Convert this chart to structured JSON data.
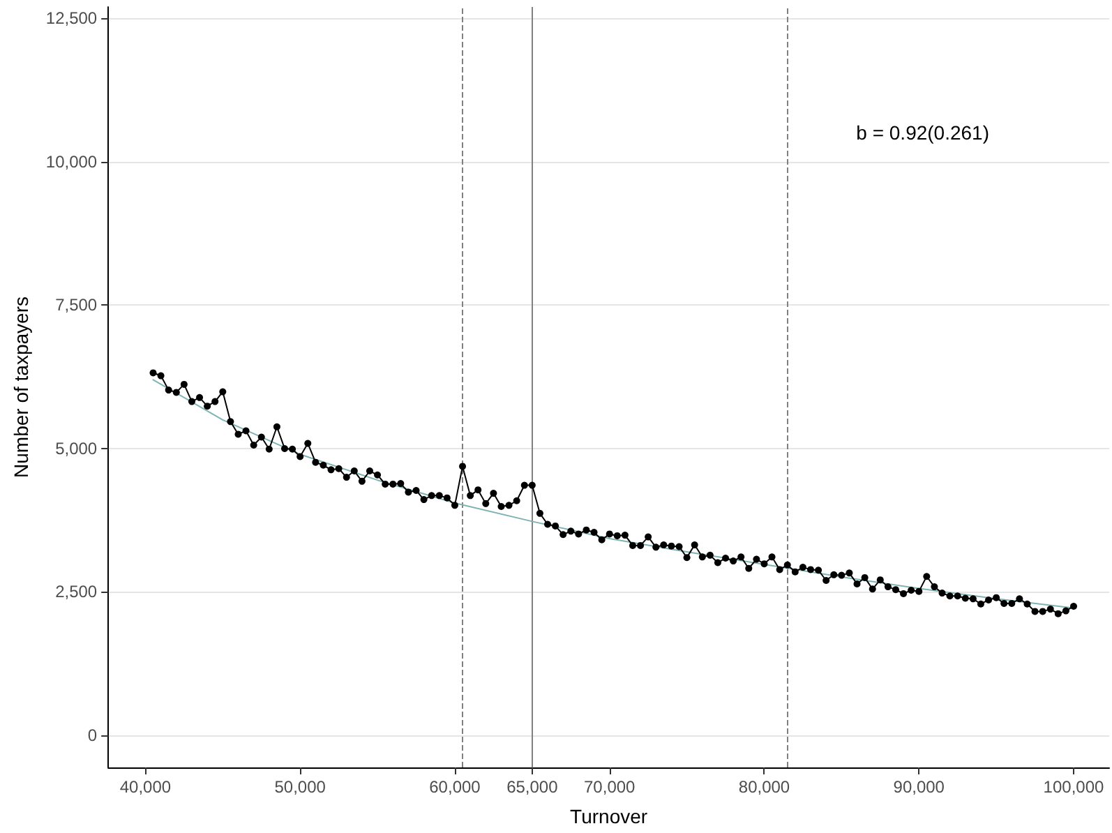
{
  "chart_data": {
    "type": "line",
    "xlabel": "Turnover",
    "ylabel": "Number of taxpayers",
    "xlim": [
      37600,
      102300
    ],
    "ylim": [
      -560,
      12700
    ],
    "xticks": [
      {
        "value": 40000,
        "label": "40,000"
      },
      {
        "value": 50000,
        "label": "50,000"
      },
      {
        "value": 60000,
        "label": "60,000"
      },
      {
        "value": 65000,
        "label": "65,000"
      },
      {
        "value": 70000,
        "label": "70,000"
      },
      {
        "value": 80000,
        "label": "80,000"
      },
      {
        "value": 90000,
        "label": "90,000"
      },
      {
        "value": 100000,
        "label": "100,000"
      }
    ],
    "yticks": [
      0,
      {
        "value": 2500,
        "label": "2,500"
      },
      {
        "value": 5000,
        "label": "5,000"
      },
      {
        "value": 7500,
        "label": "7,500"
      },
      {
        "value": 10000,
        "label": "10,000"
      },
      {
        "value": 12500,
        "label": "12,500"
      }
    ],
    "grid": "y",
    "marker": "circle",
    "line_style": "solid",
    "series": [
      {
        "color": "#000000",
        "x": [
          40500,
          41000,
          41500,
          42000,
          42500,
          43000,
          43500,
          44000,
          44500,
          45000,
          45500,
          46000,
          46500,
          47000,
          47500,
          48000,
          48500,
          49000,
          49500,
          50000,
          50500,
          51000,
          51500,
          52000,
          52500,
          53000,
          53500,
          54000,
          54500,
          55000,
          55500,
          56000,
          56500,
          57000,
          57500,
          58000,
          58500,
          59000,
          59500,
          60000,
          60500,
          61000,
          61500,
          62000,
          62500,
          63000,
          63500,
          64000,
          64500,
          65000,
          65500,
          66000,
          66500,
          67000,
          67500,
          68000,
          68500,
          69000,
          69500,
          70000,
          70500,
          71000,
          71500,
          72000,
          72500,
          73000,
          73500,
          74000,
          74500,
          75000,
          75500,
          76000,
          76500,
          77000,
          77500,
          78000,
          78500,
          79000,
          79500,
          80000,
          80500,
          81000,
          81500,
          82000,
          82500,
          83000,
          83500,
          84000,
          84500,
          85000,
          85500,
          86000,
          86500,
          87000,
          87500,
          88000,
          88500,
          89000,
          89500,
          90000,
          90500,
          91000,
          91500,
          92000,
          92500,
          93000,
          93500,
          94000,
          94500,
          95000,
          95500,
          96000,
          96500,
          97000,
          97500,
          98000,
          98500,
          99000,
          99500,
          100000
        ],
        "values": [
          6320,
          6270,
          6020,
          5980,
          6120,
          5820,
          5890,
          5740,
          5820,
          5990,
          5470,
          5250,
          5310,
          5060,
          5200,
          4990,
          5380,
          5000,
          4990,
          4860,
          5090,
          4760,
          4710,
          4630,
          4650,
          4500,
          4610,
          4430,
          4610,
          4540,
          4380,
          4380,
          4390,
          4240,
          4270,
          4110,
          4180,
          4180,
          4140,
          4010,
          4690,
          4180,
          4280,
          4040,
          4220,
          3990,
          4010,
          4090,
          4360,
          4360,
          3870,
          3680,
          3650,
          3500,
          3560,
          3510,
          3580,
          3540,
          3410,
          3510,
          3480,
          3490,
          3310,
          3310,
          3460,
          3280,
          3320,
          3300,
          3290,
          3100,
          3320,
          3110,
          3140,
          3010,
          3090,
          3040,
          3110,
          2910,
          3070,
          2990,
          3110,
          2890,
          2970,
          2850,
          2930,
          2890,
          2880,
          2700,
          2800,
          2790,
          2830,
          2640,
          2750,
          2550,
          2710,
          2590,
          2540,
          2470,
          2530,
          2510,
          2770,
          2590,
          2480,
          2430,
          2430,
          2390,
          2380,
          2290,
          2360,
          2400,
          2300,
          2300,
          2380,
          2290,
          2160,
          2160,
          2200,
          2120,
          2170,
          2250
        ]
      },
      {
        "type": "line",
        "marker": "none",
        "color": "#7fb3b3",
        "x": [
          40500,
          45000,
          50000,
          55000,
          60000,
          65000,
          70000,
          75000,
          80000,
          85000,
          90000,
          95000,
          100000
        ],
        "values": [
          6200,
          5500,
          4900,
          4450,
          4050,
          3730,
          3430,
          3200,
          2980,
          2760,
          2560,
          2380,
          2220
        ]
      }
    ],
    "ref_lines": [
      {
        "axis": "x",
        "value": 60500,
        "color": "#808080",
        "line_style": "dashed"
      },
      {
        "axis": "x",
        "value": 65000,
        "color": "#808080",
        "line_style": "solid"
      },
      {
        "axis": "x",
        "value": 81500,
        "color": "#808080",
        "line_style": "dashed"
      }
    ],
    "annotations": [
      "b = 0.92(0.261)"
    ]
  }
}
